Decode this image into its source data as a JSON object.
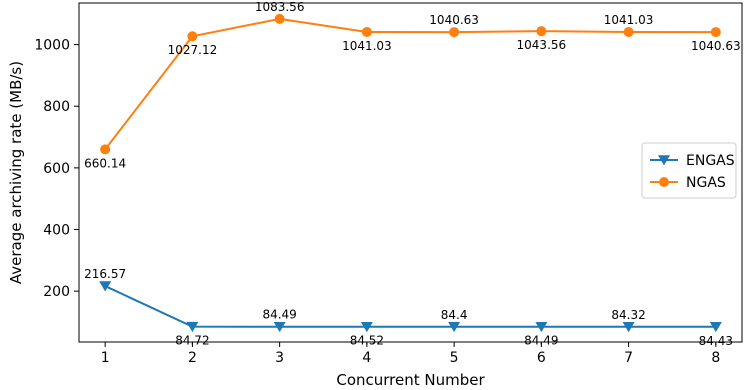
{
  "chart_data": {
    "type": "line",
    "title": "",
    "xlabel": "Concurrent Number",
    "ylabel": "Average archiving rate (MB/s)",
    "x": [
      1,
      2,
      3,
      4,
      5,
      6,
      7,
      8
    ],
    "xlim": [
      0.7,
      8.3
    ],
    "ylim": [
      35,
      1135
    ],
    "yticks": [
      200,
      400,
      600,
      800,
      1000
    ],
    "grid": false,
    "legend_position": "center-right",
    "series": [
      {
        "name": "ENGAS",
        "color": "#1f77b4",
        "marker": "triangle-down",
        "values": [
          216.57,
          84.72,
          84.49,
          84.52,
          84.4,
          84.49,
          84.32,
          84.43
        ],
        "labels": [
          "216.57",
          "84.72",
          "84.49",
          "84.52",
          "84.4",
          "84.49",
          "84.32",
          "84.43"
        ],
        "label_pos": [
          "above",
          "below",
          "above",
          "below",
          "above",
          "below",
          "above",
          "below"
        ]
      },
      {
        "name": "NGAS",
        "color": "#ff7f0e",
        "marker": "circle",
        "values": [
          660.14,
          1027.12,
          1083.56,
          1041.03,
          1040.63,
          1043.56,
          1041.03,
          1040.63
        ],
        "labels": [
          "660.14",
          "1027.12",
          "1083.56",
          "1041.03",
          "1040.63",
          "1043.56",
          "1041.03",
          "1040.63"
        ],
        "label_pos": [
          "below",
          "below",
          "above",
          "below",
          "above",
          "below",
          "above",
          "below"
        ]
      }
    ]
  }
}
